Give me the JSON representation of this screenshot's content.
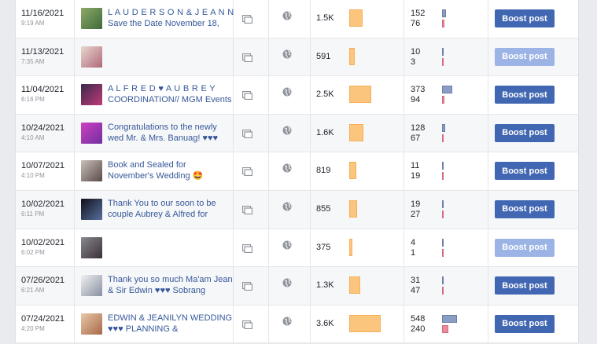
{
  "colors": {
    "boost_active": "#4267b2",
    "boost_disabled": "#9cb4e5",
    "reach_bar": "#fcc57d",
    "clicks_bar": "#8b9dc3",
    "reactions_bar": "#e98b9d"
  },
  "icons": {
    "post_type": "album-icon",
    "audience": "globe-icon"
  },
  "max_reach": 3600,
  "max_engagement": 548,
  "posts": [
    {
      "date": "11/16/2021",
      "time": "9:19 AM",
      "line1": "L A U D E R S O N & J E A N N",
      "line2": "Save the Date November 18,",
      "reach_label": "1.5K",
      "reach": 1500,
      "clicks": 152,
      "reactions": 76,
      "boost_label": "Boost post",
      "boost_enabled": true,
      "thumb": [
        "#8ea868",
        "#3e6b3a"
      ]
    },
    {
      "date": "11/13/2021",
      "time": "7:35 AM",
      "line1": "",
      "line2": "",
      "reach_label": "591",
      "reach": 591,
      "clicks": 10,
      "reactions": 3,
      "boost_label": "Boost post",
      "boost_enabled": false,
      "thumb": [
        "#e8d8d0",
        "#b06878"
      ]
    },
    {
      "date": "11/04/2021",
      "time": "6:16 PM",
      "line1": "A L F R E D ♥ A U B R E Y",
      "line2": "COORDINATION// MGM Events",
      "reach_label": "2.5K",
      "reach": 2500,
      "clicks": 373,
      "reactions": 94,
      "boost_label": "Boost post",
      "boost_enabled": true,
      "thumb": [
        "#3a2a4a",
        "#c03a7a"
      ]
    },
    {
      "date": "10/24/2021",
      "time": "4:10 AM",
      "line1": "Congratulations to the newly",
      "line2": "wed Mr. & Mrs. Banuag! ♥♥♥",
      "reach_label": "1.6K",
      "reach": 1600,
      "clicks": 128,
      "reactions": 67,
      "boost_label": "Boost post",
      "boost_enabled": true,
      "thumb": [
        "#d040c0",
        "#7030a0"
      ]
    },
    {
      "date": "10/07/2021",
      "time": "4:10 PM",
      "line1": "Book and Sealed for",
      "line2": "November's Wedding 🤩",
      "reach_label": "819",
      "reach": 819,
      "clicks": 11,
      "reactions": 19,
      "boost_label": "Boost post",
      "boost_enabled": true,
      "thumb": [
        "#c8c0b8",
        "#5a4a48"
      ]
    },
    {
      "date": "10/02/2021",
      "time": "6:11 PM",
      "line1": "Thank You to our soon to be",
      "line2": "couple Aubrey & Alfred for",
      "reach_label": "855",
      "reach": 855,
      "clicks": 19,
      "reactions": 27,
      "boost_label": "Boost post",
      "boost_enabled": true,
      "thumb": [
        "#101018",
        "#5870a0"
      ]
    },
    {
      "date": "10/02/2021",
      "time": "6:02 PM",
      "line1": "",
      "line2": "",
      "reach_label": "375",
      "reach": 375,
      "clicks": 4,
      "reactions": 1,
      "boost_label": "Boost post",
      "boost_enabled": false,
      "thumb": [
        "#8a8890",
        "#3a3038"
      ]
    },
    {
      "date": "07/26/2021",
      "time": "6:21 AM",
      "line1": "Thank you so much Ma'am Jean",
      "line2": "& Sir Edwin ♥♥♥ Sobrang",
      "reach_label": "1.3K",
      "reach": 1300,
      "clicks": 31,
      "reactions": 47,
      "boost_label": "Boost post",
      "boost_enabled": true,
      "thumb": [
        "#f0f0f0",
        "#8890a0"
      ]
    },
    {
      "date": "07/24/2021",
      "time": "4:20 PM",
      "line1": "EDWIN & JEANILYN WEDDING",
      "line2": "♥♥♥ PLANNING &",
      "reach_label": "3.6K",
      "reach": 3600,
      "clicks": 548,
      "reactions": 240,
      "boost_label": "Boost post",
      "boost_enabled": true,
      "thumb": [
        "#e8c8a8",
        "#a86848"
      ]
    }
  ]
}
